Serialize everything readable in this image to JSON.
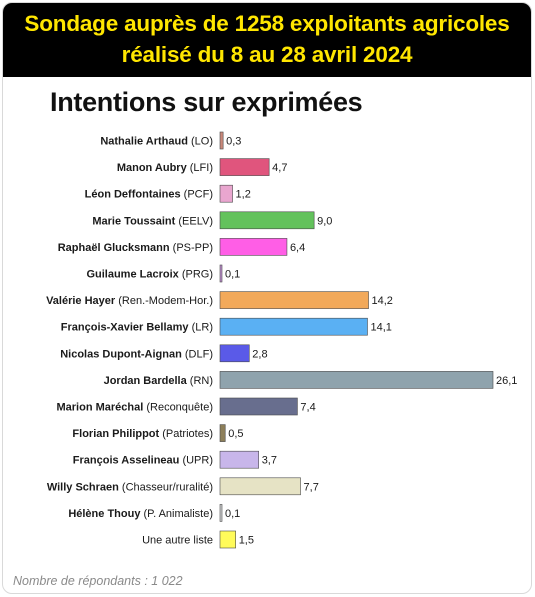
{
  "header": {
    "line1": "Sondage auprès de 1258 exploitants agricoles",
    "line2": "réalisé du 8 au 28 avril 2024"
  },
  "footnote": "Nombre de répondants : 1 022",
  "colors": {
    "banner_bg": "#000000",
    "banner_text": "#ffe600"
  },
  "chart_data": {
    "type": "bar",
    "orientation": "horizontal",
    "title": "Intentions sur exprimées",
    "categories": [
      {
        "name": "Nathalie Arthaud",
        "party": "(LO)"
      },
      {
        "name": "Manon Aubry",
        "party": "(LFI)"
      },
      {
        "name": "Léon Deffontaines",
        "party": "(PCF)"
      },
      {
        "name": "Marie Toussaint",
        "party": "(EELV)"
      },
      {
        "name": "Raphaël Glucksmann",
        "party": "(PS-PP)"
      },
      {
        "name": "Guilaume Lacroix",
        "party": "(PRG)"
      },
      {
        "name": "Valérie Hayer",
        "party": "(Ren.-Modem-Hor.)"
      },
      {
        "name": "François-Xavier Bellamy",
        "party": "(LR)"
      },
      {
        "name": "Nicolas Dupont-Aignan",
        "party": "(DLF)"
      },
      {
        "name": "Jordan Bardella",
        "party": "(RN)"
      },
      {
        "name": "Marion Maréchal",
        "party": "(Reconquête)"
      },
      {
        "name": "Florian Philippot",
        "party": "(Patriotes)"
      },
      {
        "name": "François Asselineau",
        "party": "(UPR)"
      },
      {
        "name": "Willy Schraen",
        "party": "(Chasseur/ruralité)"
      },
      {
        "name": "Hélène Thouy",
        "party": "(P. Animaliste)"
      },
      {
        "name": "",
        "party": "Une autre liste"
      }
    ],
    "values": [
      0.3,
      4.7,
      1.2,
      9.0,
      6.4,
      0.1,
      14.2,
      14.1,
      2.8,
      26.1,
      7.4,
      0.5,
      3.7,
      7.7,
      0.1,
      1.5
    ],
    "value_labels": [
      "0,3",
      "4,7",
      "1,2",
      "9,0",
      "6,4",
      "0,1",
      "14,2",
      "14,1",
      "2,8",
      "26,1",
      "7,4",
      "0,5",
      "3,7",
      "7,7",
      "0,1",
      "1,5"
    ],
    "bar_colors": [
      "#c9887a",
      "#e0557d",
      "#e9a6cf",
      "#63c25c",
      "#ff5ee6",
      "#c08fd0",
      "#f2a95a",
      "#5ab0f3",
      "#5a5ae8",
      "#8fa3ad",
      "#686e8e",
      "#8d7f5a",
      "#c8b6ea",
      "#e6e3c5",
      "#cfd0d2",
      "#fffb5a"
    ],
    "xlim": [
      0,
      26.1
    ],
    "grid": false,
    "legend": "none"
  }
}
